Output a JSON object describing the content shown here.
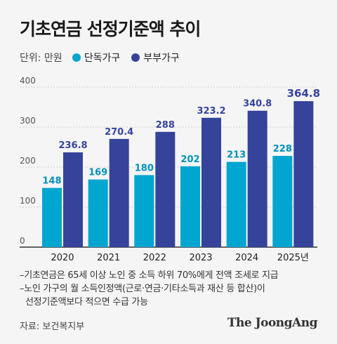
{
  "title": "기초연금 선정기준액 추이",
  "unit_label": "단위: 만원",
  "colors": {
    "single": "#00a6cf",
    "couple": "#35449a",
    "bg": "#f5f5f5"
  },
  "notes": [
    "–기초연금은 65세 이상 노인 중 소득 하위 70%에게 전액 조세로 지급",
    "–노인 가구의 월 소득인정액(근로·연금·기타소득과 재산 등 합산)이",
    "선정기준액보다 적으면 수급 가능"
  ],
  "source": "자료: 보건복지부",
  "logo": "The JoongAng",
  "chart_data": {
    "type": "bar",
    "title": "기초연금 선정기준액 추이",
    "categories": [
      "2020",
      "2021",
      "2022",
      "2023",
      "2024",
      "2025년"
    ],
    "series": [
      {
        "name": "단독가구",
        "values": [
          148,
          169,
          180,
          202,
          213,
          228
        ],
        "color": "#00a6cf"
      },
      {
        "name": "부부가구",
        "values": [
          236.8,
          270.4,
          288,
          323.2,
          340.8,
          364.8
        ],
        "color": "#35449a"
      }
    ],
    "value_labels": [
      [
        "148",
        "169",
        "180",
        "202",
        "213",
        "228"
      ],
      [
        "236.8",
        "270.4",
        "288",
        "323.2",
        "340.8",
        "364.8"
      ]
    ],
    "yticks": [
      0,
      100,
      200,
      300,
      400
    ],
    "ylim": [
      0,
      400
    ],
    "grid": true,
    "legend": "top-left"
  }
}
